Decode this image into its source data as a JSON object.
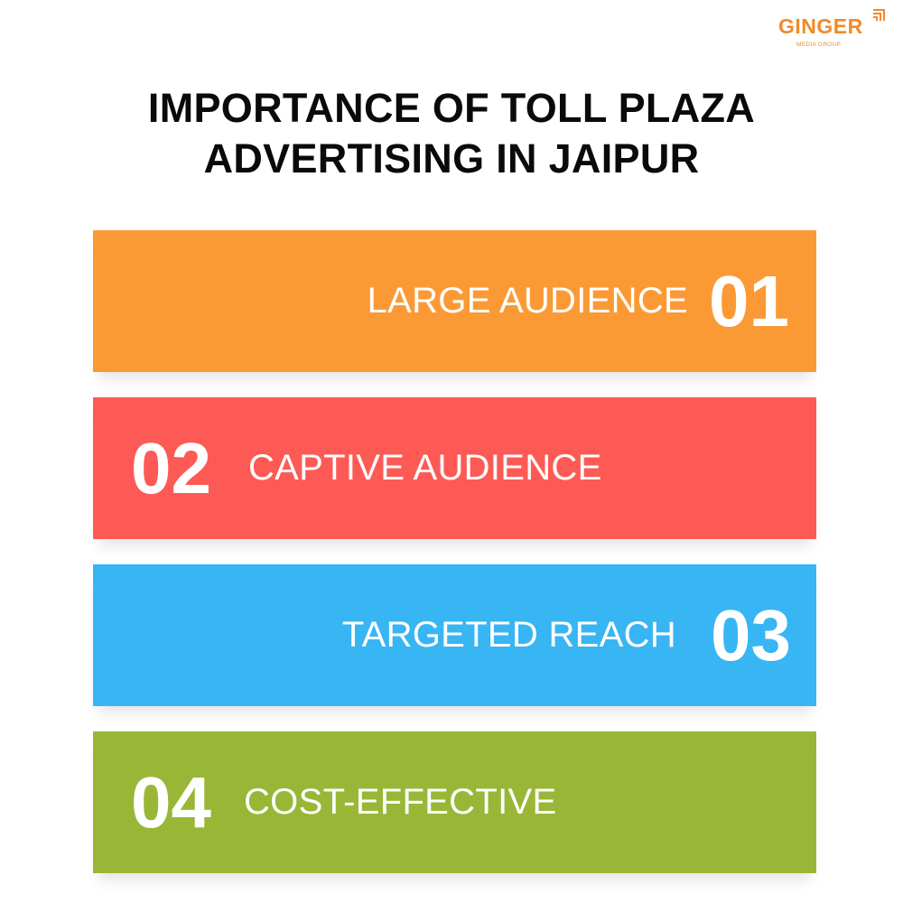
{
  "logo": {
    "word": "GINGER",
    "sub": "MEDIA GROUP",
    "color": "#f28a28"
  },
  "title": {
    "line1": "IMPORTANCE OF TOLL PLAZA",
    "line2": "ADVERTISING IN JAIPUR"
  },
  "items": [
    {
      "number": "01",
      "label": "LARGE AUDIENCE",
      "color": "#fb9a35"
    },
    {
      "number": "02",
      "label": "CAPTIVE AUDIENCE",
      "color": "#fd5a56"
    },
    {
      "number": "03",
      "label": "TARGETED REACH",
      "color": "#38b5f3"
    },
    {
      "number": "04",
      "label": "COST-EFFECTIVE",
      "color": "#9ab637"
    }
  ]
}
